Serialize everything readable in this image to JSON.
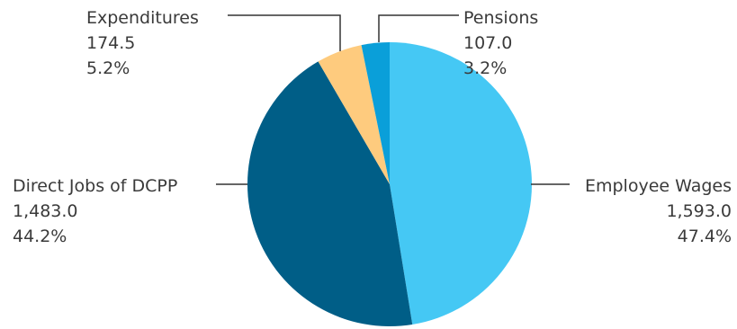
{
  "chart_data": {
    "type": "pie",
    "title": "",
    "start_angle_deg": 0,
    "direction": "clockwise",
    "legend": "none",
    "slices": [
      {
        "name": "Employee Wages",
        "value": "1,593.0",
        "percent": "47.4%",
        "numeric_value": 1593.0,
        "color": "#45c8f4"
      },
      {
        "name": "Direct Jobs of DCPP",
        "value": "1,483.0",
        "percent": "44.2%",
        "numeric_value": 1483.0,
        "color": "#005e87"
      },
      {
        "name": "Expenditures",
        "value": "174.5",
        "percent": "5.2%",
        "numeric_value": 174.5,
        "color": "#fecb7e"
      },
      {
        "name": "Pensions",
        "value": "107.0",
        "percent": "3.2%",
        "numeric_value": 107.0,
        "color": "#0a9fd9"
      }
    ]
  }
}
